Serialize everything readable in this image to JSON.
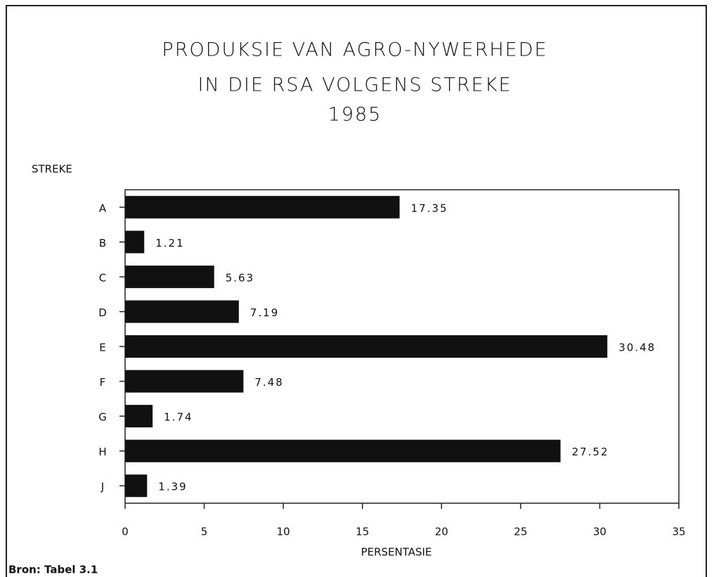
{
  "chart_data": {
    "type": "bar",
    "orientation": "horizontal",
    "title": [
      "PRODUKSIE VAN AGRO-NYWERHEDE",
      "IN DIE RSA VOLGENS STREKE",
      "1985"
    ],
    "y_label": "STREKE",
    "x_label": "PERSENTASIE",
    "source": "Bron: Tabel 3.1",
    "categories": [
      "A",
      "B",
      "C",
      "D",
      "E",
      "F",
      "G",
      "H",
      "J"
    ],
    "values": [
      17.35,
      1.21,
      5.63,
      7.19,
      30.48,
      7.48,
      1.74,
      27.52,
      1.39
    ],
    "color": "#111111",
    "xlim": [
      0,
      35
    ],
    "xticks": [
      0,
      5,
      10,
      15,
      20,
      25,
      30,
      35
    ],
    "grid": false
  }
}
